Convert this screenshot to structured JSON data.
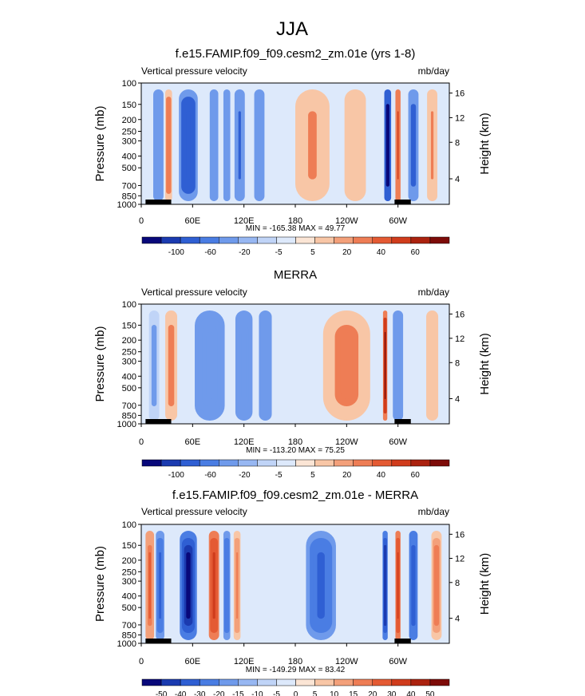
{
  "figure": {
    "season": "JJA"
  },
  "colors": {
    "blues": [
      "#08087a",
      "#1b3bb0",
      "#2f5fd3",
      "#4a7de3",
      "#6f9aeb",
      "#97b7f2",
      "#c0d4f7",
      "#dde9fb"
    ],
    "reds": [
      "#fbe5d5",
      "#f8c6a6",
      "#f3a07a",
      "#ee7d55",
      "#e45a33",
      "#d03c1c",
      "#ab220f",
      "#7d0b08"
    ],
    "land": "#000000"
  },
  "chart_data": [
    {
      "type": "heatmap",
      "title": "f.e15.FAMIP.f09_f09.cesm2_zm.01e (yrs 1-8)",
      "left_string": "Vertical pressure velocity",
      "right_string": "mb/day",
      "ylabel": "Pressure (mb)",
      "y2label": "Height (km)",
      "ylim": [
        1000,
        100
      ],
      "yticks": [
        "100",
        "150",
        "200",
        "250",
        "300",
        "400",
        "500",
        "700",
        "850",
        "1000"
      ],
      "y2ticks": [
        "4",
        "8",
        "12",
        "16"
      ],
      "xlim": [
        0,
        360
      ],
      "xticks": [
        "0",
        "60E",
        "120E",
        "180",
        "120W",
        "60W"
      ],
      "stats": "MIN = -165.38   MAX =  49.77",
      "colorbar_labels": [
        "-100",
        "-60",
        "-20",
        "-5",
        "5",
        "20",
        "40",
        "60"
      ],
      "features": [
        {
          "lon": 20,
          "width": 12,
          "value": -45
        },
        {
          "lon": 32,
          "width": 8,
          "value": 30
        },
        {
          "lon": 55,
          "width": 22,
          "value": -100
        },
        {
          "lon": 85,
          "width": 10,
          "value": -55
        },
        {
          "lon": 100,
          "width": 8,
          "value": -60
        },
        {
          "lon": 115,
          "width": 12,
          "value": -70
        },
        {
          "lon": 138,
          "width": 12,
          "value": -40
        },
        {
          "lon": 200,
          "width": 40,
          "value": 20
        },
        {
          "lon": 250,
          "width": 25,
          "value": 15
        },
        {
          "lon": 288,
          "width": 8,
          "value": -120
        },
        {
          "lon": 300,
          "width": 6,
          "value": 40
        },
        {
          "lon": 318,
          "width": 12,
          "value": -80
        },
        {
          "lon": 340,
          "width": 12,
          "value": 20
        }
      ],
      "land": [
        [
          5,
          20
        ],
        [
          15,
          35
        ],
        [
          296,
          315
        ]
      ]
    },
    {
      "type": "heatmap",
      "title": "MERRA",
      "left_string": "Vertical pressure velocity",
      "right_string": "mb/day",
      "ylabel": "Pressure (mb)",
      "y2label": "Height (km)",
      "ylim": [
        1000,
        100
      ],
      "yticks": [
        "100",
        "150",
        "200",
        "250",
        "300",
        "400",
        "500",
        "700",
        "850",
        "1000"
      ],
      "y2ticks": [
        "4",
        "8",
        "12",
        "16"
      ],
      "xlim": [
        0,
        360
      ],
      "xticks": [
        "0",
        "60E",
        "120E",
        "180",
        "120W",
        "60W"
      ],
      "stats": "MIN = -113.20   MAX =  75.25",
      "colorbar_labels": [
        "-100",
        "-60",
        "-20",
        "-5",
        "5",
        "20",
        "40",
        "60"
      ],
      "features": [
        {
          "lon": 15,
          "width": 12,
          "value": -25
        },
        {
          "lon": 35,
          "width": 14,
          "value": 25
        },
        {
          "lon": 80,
          "width": 35,
          "value": -60
        },
        {
          "lon": 120,
          "width": 20,
          "value": -50
        },
        {
          "lon": 145,
          "width": 15,
          "value": -40
        },
        {
          "lon": 240,
          "width": 55,
          "value": 25
        },
        {
          "lon": 285,
          "width": 5,
          "value": 60
        },
        {
          "lon": 300,
          "width": 12,
          "value": -60
        },
        {
          "lon": 340,
          "width": 14,
          "value": 15
        }
      ],
      "land": [
        [
          5,
          20
        ],
        [
          15,
          35
        ],
        [
          296,
          315
        ]
      ]
    },
    {
      "type": "heatmap",
      "title": "f.e15.FAMIP.f09_f09.cesm2_zm.01e - MERRA",
      "left_string": "Vertical pressure velocity",
      "right_string": "mb/day",
      "ylabel": "Pressure (mb)",
      "y2label": "Height (km)",
      "ylim": [
        1000,
        100
      ],
      "yticks": [
        "100",
        "150",
        "200",
        "250",
        "300",
        "400",
        "500",
        "700",
        "850",
        "1000"
      ],
      "y2ticks": [
        "4",
        "8",
        "12",
        "16"
      ],
      "xlim": [
        0,
        360
      ],
      "xticks": [
        "0",
        "60E",
        "120E",
        "180",
        "120W",
        "60W"
      ],
      "stats": "MIN = -149.29  MAX =  83.42",
      "colorbar_labels": [
        "-50",
        "-40",
        "-30",
        "-20",
        "-15",
        "-10",
        "-5",
        "0",
        "5",
        "10",
        "15",
        "20",
        "30",
        "40",
        "50"
      ],
      "features": [
        {
          "lon": 10,
          "width": 10,
          "value": 20
        },
        {
          "lon": 22,
          "width": 10,
          "value": -35
        },
        {
          "lon": 55,
          "width": 20,
          "value": -55
        },
        {
          "lon": 85,
          "width": 12,
          "value": 30
        },
        {
          "lon": 100,
          "width": 8,
          "value": -30
        },
        {
          "lon": 112,
          "width": 8,
          "value": 15
        },
        {
          "lon": 210,
          "width": 35,
          "value": -35
        },
        {
          "lon": 285,
          "width": 6,
          "value": -50
        },
        {
          "lon": 300,
          "width": 6,
          "value": 35
        },
        {
          "lon": 318,
          "width": 10,
          "value": -40
        },
        {
          "lon": 345,
          "width": 12,
          "value": 18
        }
      ],
      "land": [
        [
          5,
          20
        ],
        [
          15,
          35
        ],
        [
          296,
          315
        ]
      ]
    }
  ]
}
